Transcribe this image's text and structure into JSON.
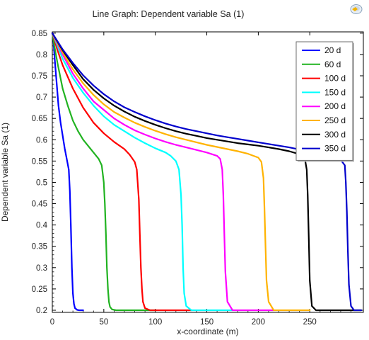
{
  "chart_data": {
    "type": "line",
    "title": "Line Graph: Dependent variable Sa (1)",
    "xlabel": "x-coordinate (m)",
    "ylabel": "Dependent variable Sa (1)",
    "xlim": [
      0,
      302
    ],
    "ylim": [
      0.195,
      0.853
    ],
    "xticks": [
      0,
      50,
      100,
      150,
      200,
      250
    ],
    "yticks": [
      0.2,
      0.25,
      0.3,
      0.35,
      0.4,
      0.45,
      0.5,
      0.55,
      0.6,
      0.65,
      0.7,
      0.75,
      0.8,
      0.85
    ],
    "ytick_labels": [
      "0.2",
      "0.25",
      "0.3",
      "0.35",
      "0.4",
      "0.45",
      "0.5",
      "0.55",
      "0.6",
      "0.65",
      "0.7",
      "0.75",
      "0.8",
      "0.85"
    ],
    "grid": false,
    "legend_position": "top-right",
    "series": [
      {
        "name": "20 d",
        "color": "#0000ff",
        "x": [
          0,
          1,
          2,
          4,
          6,
          8,
          10,
          12,
          14,
          16,
          17,
          18,
          19,
          20,
          21,
          22,
          24,
          26,
          28,
          30
        ],
        "y": [
          0.85,
          0.835,
          0.8,
          0.74,
          0.68,
          0.64,
          0.61,
          0.58,
          0.555,
          0.53,
          0.48,
          0.4,
          0.3,
          0.24,
          0.215,
          0.205,
          0.201,
          0.2,
          0.2,
          0.2
        ]
      },
      {
        "name": "60 d",
        "color": "#21b321",
        "x": [
          0,
          2,
          5,
          10,
          15,
          20,
          25,
          30,
          35,
          40,
          45,
          48,
          50,
          51,
          52,
          53,
          54,
          55,
          56,
          58,
          62,
          100
        ],
        "y": [
          0.85,
          0.82,
          0.78,
          0.72,
          0.68,
          0.645,
          0.62,
          0.6,
          0.585,
          0.57,
          0.555,
          0.54,
          0.5,
          0.45,
          0.38,
          0.3,
          0.25,
          0.22,
          0.208,
          0.202,
          0.2,
          0.2
        ]
      },
      {
        "name": "100 d",
        "color": "#ff0000",
        "x": [
          0,
          5,
          10,
          20,
          30,
          40,
          50,
          60,
          70,
          75,
          80,
          82,
          84,
          85,
          86,
          87,
          88,
          90,
          95,
          100,
          135
        ],
        "y": [
          0.85,
          0.81,
          0.775,
          0.72,
          0.675,
          0.64,
          0.615,
          0.595,
          0.578,
          0.565,
          0.548,
          0.53,
          0.46,
          0.38,
          0.3,
          0.25,
          0.22,
          0.205,
          0.2,
          0.2,
          0.2
        ]
      },
      {
        "name": "150 d",
        "color": "#00ffff",
        "x": [
          0,
          10,
          20,
          30,
          40,
          50,
          60,
          70,
          80,
          90,
          100,
          110,
          115,
          120,
          123,
          125,
          126,
          127,
          128,
          130,
          135,
          175
        ],
        "y": [
          0.85,
          0.79,
          0.745,
          0.71,
          0.68,
          0.655,
          0.635,
          0.62,
          0.605,
          0.592,
          0.58,
          0.57,
          0.562,
          0.55,
          0.53,
          0.47,
          0.4,
          0.3,
          0.24,
          0.21,
          0.2,
          0.2
        ]
      },
      {
        "name": "200 d",
        "color": "#ff00ff",
        "x": [
          0,
          10,
          20,
          30,
          40,
          50,
          60,
          70,
          80,
          90,
          100,
          110,
          120,
          130,
          140,
          150,
          160,
          163,
          165,
          166,
          167,
          168,
          170,
          175,
          215
        ],
        "y": [
          0.85,
          0.8,
          0.755,
          0.72,
          0.69,
          0.67,
          0.65,
          0.635,
          0.622,
          0.612,
          0.603,
          0.595,
          0.588,
          0.582,
          0.576,
          0.57,
          0.562,
          0.555,
          0.53,
          0.47,
          0.38,
          0.29,
          0.22,
          0.2,
          0.2
        ]
      },
      {
        "name": "250 d",
        "color": "#ffb300",
        "x": [
          0,
          10,
          20,
          30,
          40,
          50,
          60,
          70,
          80,
          90,
          100,
          110,
          120,
          130,
          140,
          150,
          160,
          170,
          180,
          190,
          200,
          203,
          205,
          206,
          207,
          208,
          210,
          215,
          250
        ],
        "y": [
          0.85,
          0.805,
          0.765,
          0.732,
          0.705,
          0.683,
          0.665,
          0.652,
          0.64,
          0.63,
          0.621,
          0.613,
          0.606,
          0.6,
          0.594,
          0.588,
          0.583,
          0.578,
          0.573,
          0.567,
          0.558,
          0.548,
          0.51,
          0.44,
          0.35,
          0.27,
          0.22,
          0.2,
          0.2
        ]
      },
      {
        "name": "300 d",
        "color": "#000000",
        "x": [
          0,
          10,
          20,
          30,
          40,
          50,
          60,
          70,
          80,
          90,
          100,
          110,
          120,
          130,
          140,
          150,
          160,
          170,
          180,
          190,
          200,
          210,
          220,
          230,
          240,
          245,
          247,
          248,
          249,
          250,
          252,
          256,
          300
        ],
        "y": [
          0.85,
          0.81,
          0.775,
          0.742,
          0.717,
          0.697,
          0.68,
          0.666,
          0.654,
          0.644,
          0.635,
          0.627,
          0.62,
          0.614,
          0.609,
          0.604,
          0.6,
          0.596,
          0.592,
          0.589,
          0.586,
          0.582,
          0.578,
          0.573,
          0.566,
          0.558,
          0.53,
          0.47,
          0.37,
          0.27,
          0.21,
          0.2,
          0.2
        ]
      },
      {
        "name": "350 d",
        "color": "#0000cc",
        "x": [
          0,
          10,
          20,
          30,
          40,
          50,
          60,
          70,
          80,
          90,
          100,
          110,
          120,
          130,
          140,
          150,
          160,
          170,
          180,
          190,
          200,
          210,
          220,
          230,
          240,
          250,
          260,
          270,
          280,
          284,
          285,
          286,
          287,
          288,
          290,
          293,
          300
        ],
        "y": [
          0.85,
          0.812,
          0.78,
          0.751,
          0.727,
          0.707,
          0.69,
          0.676,
          0.665,
          0.655,
          0.646,
          0.638,
          0.631,
          0.625,
          0.62,
          0.615,
          0.61,
          0.606,
          0.602,
          0.598,
          0.594,
          0.59,
          0.586,
          0.582,
          0.577,
          0.572,
          0.567,
          0.561,
          0.553,
          0.54,
          0.5,
          0.43,
          0.34,
          0.26,
          0.21,
          0.2,
          0.2
        ]
      }
    ]
  }
}
